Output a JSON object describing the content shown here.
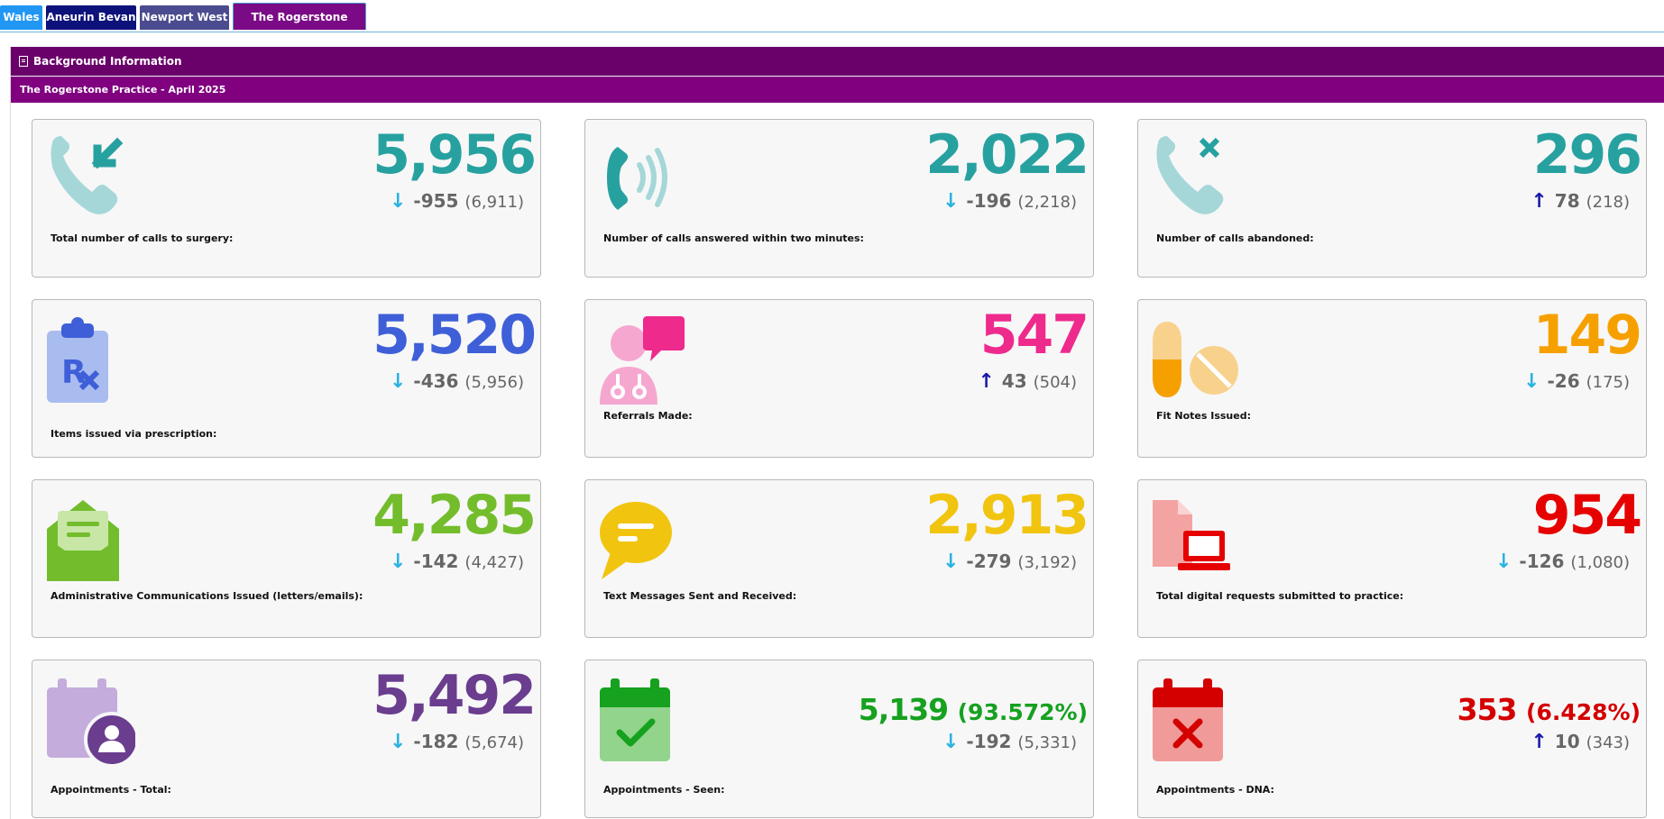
{
  "tabs": [
    {
      "label": "Wales"
    },
    {
      "label": "Aneurin Bevan"
    },
    {
      "label": "Newport West"
    },
    {
      "label": "The Rogerstone Practice"
    }
  ],
  "background_bar": {
    "label": "Background Information",
    "icon": "document-icon"
  },
  "section": {
    "title": "The Rogerstone Practice - April 2025"
  },
  "colors": {
    "teal": "#27a1a0",
    "blue": "#3e5fd8",
    "pink": "#ee2a8d",
    "orange": "#f6a000",
    "green": "#73bd2c",
    "yellow": "#f1c40f",
    "red": "#e60000",
    "purple": "#6a3d8f",
    "dkgreen": "#16a11f",
    "crimson": "#d40000",
    "down_arrow": "#2ab3e0",
    "up_arrow": "#1a1aa8",
    "header_dark": "#6a006a",
    "header": "#800080"
  },
  "cards": [
    {
      "value": "5,956",
      "arrow": "down",
      "change": "-955",
      "prev": "(6,911)",
      "label": "Total number of calls to surgery:",
      "icon": "phone-incoming-icon"
    },
    {
      "value": "2,022",
      "arrow": "down",
      "change": "-196",
      "prev": "(2,218)",
      "label": "Number of calls answered within two minutes:",
      "icon": "phone-ringing-icon"
    },
    {
      "value": "296",
      "arrow": "up",
      "change": "78",
      "prev": "(218)",
      "label": "Number of calls abandoned:",
      "icon": "phone-missed-icon"
    },
    {
      "value": "5,520",
      "arrow": "down",
      "change": "-436",
      "prev": "(5,956)",
      "label": "Items issued via prescription:",
      "icon": "prescription-clipboard-icon"
    },
    {
      "value": "547",
      "arrow": "up",
      "change": "43",
      "prev": "(504)",
      "label": "Referrals Made:",
      "icon": "doctor-chat-icon"
    },
    {
      "value": "149",
      "arrow": "down",
      "change": "-26",
      "prev": "(175)",
      "label": "Fit Notes Issued:",
      "icon": "pills-icon"
    },
    {
      "value": "4,285",
      "arrow": "down",
      "change": "-142",
      "prev": "(4,427)",
      "label": "Administrative Communications Issued (letters/emails):",
      "icon": "envelope-letter-icon"
    },
    {
      "value": "2,913",
      "arrow": "down",
      "change": "-279",
      "prev": "(3,192)",
      "label": "Text Messages Sent and Received:",
      "icon": "chat-bubble-icon"
    },
    {
      "value": "954",
      "arrow": "down",
      "change": "-126",
      "prev": "(1,080)",
      "label": "Total digital requests submitted to practice:",
      "icon": "document-laptop-icon"
    },
    {
      "value": "5,492",
      "arrow": "down",
      "change": "-182",
      "prev": "(5,674)",
      "label": "Appointments - Total:",
      "icon": "calendar-user-icon"
    },
    {
      "value": "5,139",
      "pct": "(93.572%)",
      "arrow": "down",
      "change": "-192",
      "prev": "(5,331)",
      "label": "Appointments - Seen:",
      "icon": "calendar-check-icon"
    },
    {
      "value": "353",
      "pct": "(6.428%)",
      "arrow": "up",
      "change": "10",
      "prev": "(343)",
      "label": "Appointments - DNA:",
      "icon": "calendar-cross-icon"
    }
  ]
}
